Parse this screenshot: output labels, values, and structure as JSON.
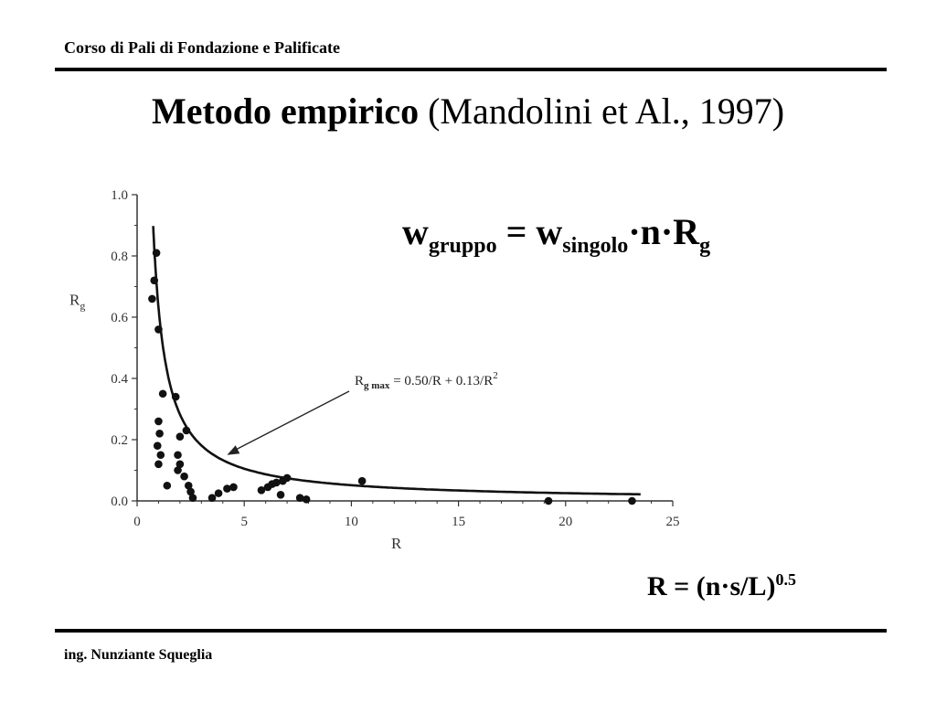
{
  "header": {
    "course": "Corso di Pali di Fondazione e Palificate"
  },
  "title": {
    "bold": "Metodo empirico",
    "normal": "(Mandolini et Al., 1997)"
  },
  "formula_w": {
    "lhs": "w",
    "lhs_sub": "gruppo",
    "eq": " = w",
    "rhs_sub": "singolo",
    "rest": "·n·R",
    "rest_sub": "g"
  },
  "formula_r": {
    "text": "R = (n·s/L)",
    "sup": "0.5"
  },
  "footer": {
    "author": "ing. Nunziante Squeglia"
  },
  "chart_data": {
    "type": "scatter",
    "xlabel": "R",
    "ylabel": "Rg",
    "ylabel_main": "R",
    "ylabel_sub": "g",
    "xlim": [
      0,
      25
    ],
    "ylim": [
      0,
      1.0
    ],
    "x_ticks": [
      0,
      5,
      10,
      15,
      20,
      25
    ],
    "y_ticks": [
      0.0,
      0.2,
      0.4,
      0.6,
      0.8,
      1.0
    ],
    "x_tick_labels": [
      "0",
      "5",
      "10",
      "15",
      "20",
      "25"
    ],
    "y_tick_labels": [
      "0.0",
      "0.2",
      "0.4",
      "0.6",
      "0.8",
      "1.0"
    ],
    "grid": false,
    "annotation": {
      "prefix": "R",
      "sub": "g max",
      "eq": " = 0.50/R + 0.13/R",
      "sup": "2",
      "arrow_target": [
        4.2,
        0.15
      ]
    },
    "curve": {
      "name": "Rg max = 0.50/R + 0.13/R^2",
      "x_from": 0.75,
      "x_to": 23.5
    },
    "points": [
      [
        0.7,
        0.66
      ],
      [
        0.8,
        0.72
      ],
      [
        0.9,
        0.81
      ],
      [
        1.0,
        0.56
      ],
      [
        1.2,
        0.35
      ],
      [
        1.0,
        0.26
      ],
      [
        1.05,
        0.22
      ],
      [
        0.95,
        0.18
      ],
      [
        1.1,
        0.15
      ],
      [
        1.0,
        0.12
      ],
      [
        1.4,
        0.05
      ],
      [
        1.8,
        0.34
      ],
      [
        2.3,
        0.23
      ],
      [
        2.0,
        0.21
      ],
      [
        1.9,
        0.15
      ],
      [
        2.0,
        0.12
      ],
      [
        1.9,
        0.1
      ],
      [
        2.2,
        0.08
      ],
      [
        2.4,
        0.05
      ],
      [
        2.5,
        0.03
      ],
      [
        2.6,
        0.01
      ],
      [
        3.5,
        0.01
      ],
      [
        3.8,
        0.025
      ],
      [
        4.2,
        0.04
      ],
      [
        4.5,
        0.045
      ],
      [
        5.8,
        0.035
      ],
      [
        6.1,
        0.045
      ],
      [
        6.3,
        0.055
      ],
      [
        6.5,
        0.06
      ],
      [
        6.8,
        0.065
      ],
      [
        7.0,
        0.075
      ],
      [
        6.7,
        0.02
      ],
      [
        7.6,
        0.01
      ],
      [
        7.9,
        0.005
      ],
      [
        10.5,
        0.065
      ],
      [
        19.2,
        0.0
      ],
      [
        23.1,
        0.0
      ]
    ]
  }
}
